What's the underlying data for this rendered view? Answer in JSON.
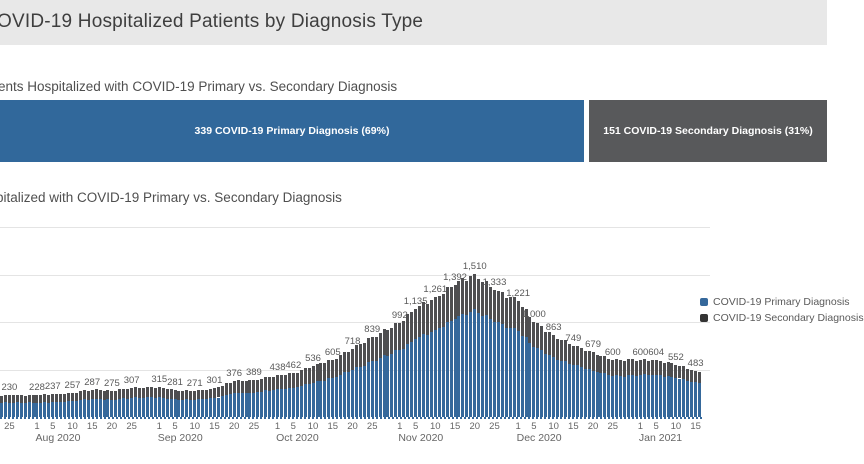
{
  "header": {
    "title": "OVID-19 Hospitalized Patients by Diagnosis Type"
  },
  "section_current": {
    "subtitle": "ents Hospitalized with COVID-19 Primary vs. Secondary Diagnosis",
    "bar": {
      "primary_label": "339 COVID-19 Primary Diagnosis (69%)",
      "secondary_label": "151 COVID-19 Secondary Diagnosis (31%)",
      "primary_value": 339,
      "primary_pct": 69,
      "secondary_value": 151,
      "secondary_pct": 31,
      "primary_color": "#31689b",
      "secondary_color": "#58595b"
    }
  },
  "section_trend": {
    "subtitle": "pitalized with COVID-19 Primary vs. Secondary Diagnosis",
    "legend": [
      {
        "label": "COVID-19 Primary Diagnosis",
        "color": "#35689b"
      },
      {
        "label": "COVID-19 Secondary Diagnosis",
        "color": "#343434"
      }
    ]
  },
  "chart_data": {
    "type": "bar",
    "subtype": "stacked-daily",
    "title": "pitalized with COVID-19 Primary vs. Secondary Diagnosis",
    "ylim": [
      0,
      2000
    ],
    "grid_step": 500,
    "grid_on": true,
    "y_tick_labels_visible": false,
    "legend_position": "right",
    "n_days": 178,
    "series": [
      {
        "name": "COVID-19 Primary Diagnosis",
        "color": "#35689b"
      },
      {
        "name": "COVID-19 Secondary Diagnosis",
        "color": "#4e4e50"
      }
    ],
    "anchors": [
      {
        "i": 0,
        "date": "",
        "total": 225,
        "primary": 148,
        "labeled": false
      },
      {
        "i": 2,
        "date": "Jul 25",
        "total": 230,
        "primary": 152,
        "labeled": true
      },
      {
        "i": 9,
        "date": "Aug 1",
        "total": 228,
        "primary": 150,
        "labeled": true
      },
      {
        "i": 13,
        "date": "Aug 5",
        "total": 237,
        "primary": 156,
        "labeled": true
      },
      {
        "i": 18,
        "date": "Aug 10",
        "total": 257,
        "primary": 170,
        "labeled": true
      },
      {
        "i": 23,
        "date": "Aug 15",
        "total": 287,
        "primary": 189,
        "labeled": true
      },
      {
        "i": 28,
        "date": "Aug 20",
        "total": 275,
        "primary": 182,
        "labeled": true
      },
      {
        "i": 33,
        "date": "Aug 25",
        "total": 307,
        "primary": 203,
        "labeled": true
      },
      {
        "i": 40,
        "date": "Sep 1",
        "total": 315,
        "primary": 208,
        "labeled": true
      },
      {
        "i": 44,
        "date": "Sep 5",
        "total": 281,
        "primary": 185,
        "labeled": true
      },
      {
        "i": 49,
        "date": "Sep 10",
        "total": 271,
        "primary": 178,
        "labeled": true
      },
      {
        "i": 54,
        "date": "Sep 15",
        "total": 301,
        "primary": 199,
        "labeled": true
      },
      {
        "i": 59,
        "date": "Sep 20",
        "total": 376,
        "primary": 248,
        "labeled": true
      },
      {
        "i": 64,
        "date": "Sep 25",
        "total": 389,
        "primary": 257,
        "labeled": true
      },
      {
        "i": 70,
        "date": "Oct 1",
        "total": 438,
        "primary": 293,
        "labeled": true
      },
      {
        "i": 74,
        "date": "Oct 5",
        "total": 462,
        "primary": 310,
        "labeled": true
      },
      {
        "i": 79,
        "date": "Oct 10",
        "total": 536,
        "primary": 359,
        "labeled": true
      },
      {
        "i": 84,
        "date": "Oct 15",
        "total": 605,
        "primary": 411,
        "labeled": true
      },
      {
        "i": 89,
        "date": "Oct 20",
        "total": 718,
        "primary": 495,
        "labeled": true
      },
      {
        "i": 94,
        "date": "Oct 25",
        "total": 839,
        "primary": 587,
        "labeled": true
      },
      {
        "i": 101,
        "date": "Nov 1",
        "total": 992,
        "primary": 704,
        "labeled": true
      },
      {
        "i": 105,
        "date": "Nov 5",
        "total": 1135,
        "primary": 817,
        "labeled": true
      },
      {
        "i": 110,
        "date": "Nov 10",
        "total": 1261,
        "primary": 920,
        "labeled": true
      },
      {
        "i": 115,
        "date": "Nov 15",
        "total": 1392,
        "primary": 1030,
        "labeled": true
      },
      {
        "i": 120,
        "date": "Nov 20",
        "total": 1510,
        "primary": 1132,
        "labeled": true
      },
      {
        "i": 125,
        "date": "Nov 25",
        "total": 1333,
        "primary": 1000,
        "labeled": true
      },
      {
        "i": 131,
        "date": "Dec 1",
        "total": 1221,
        "primary": 904,
        "labeled": true
      },
      {
        "i": 135,
        "date": "Dec 5",
        "total": 1000,
        "primary": 740,
        "labeled": true
      },
      {
        "i": 140,
        "date": "Dec 10",
        "total": 863,
        "primary": 630,
        "labeled": true
      },
      {
        "i": 145,
        "date": "Dec 15",
        "total": 749,
        "primary": 547,
        "labeled": true
      },
      {
        "i": 150,
        "date": "Dec 20",
        "total": 679,
        "primary": 489,
        "labeled": true
      },
      {
        "i": 155,
        "date": "Dec 25",
        "total": 600,
        "primary": 432,
        "labeled": true
      },
      {
        "i": 162,
        "date": "Jan 1",
        "total": 600,
        "primary": 438,
        "labeled": true
      },
      {
        "i": 166,
        "date": "Jan 5",
        "total": 604,
        "primary": 447,
        "labeled": true
      },
      {
        "i": 171,
        "date": "Jan 10",
        "total": 552,
        "primary": 414,
        "labeled": true
      },
      {
        "i": 176,
        "date": "Jan 15",
        "total": 483,
        "primary": 367,
        "labeled": true
      },
      {
        "i": 177,
        "date": "",
        "total": 475,
        "primary": 360,
        "labeled": false
      }
    ],
    "x_ticks": [
      {
        "i": 2,
        "t": "25"
      },
      {
        "i": 9,
        "t": "1"
      },
      {
        "i": 13,
        "t": "5"
      },
      {
        "i": 18,
        "t": "10"
      },
      {
        "i": 23,
        "t": "15"
      },
      {
        "i": 28,
        "t": "20"
      },
      {
        "i": 33,
        "t": "25"
      },
      {
        "i": 40,
        "t": "1"
      },
      {
        "i": 44,
        "t": "5"
      },
      {
        "i": 49,
        "t": "10"
      },
      {
        "i": 54,
        "t": "15"
      },
      {
        "i": 59,
        "t": "20"
      },
      {
        "i": 64,
        "t": "25"
      },
      {
        "i": 70,
        "t": "1"
      },
      {
        "i": 74,
        "t": "5"
      },
      {
        "i": 79,
        "t": "10"
      },
      {
        "i": 84,
        "t": "15"
      },
      {
        "i": 89,
        "t": "20"
      },
      {
        "i": 94,
        "t": "25"
      },
      {
        "i": 101,
        "t": "1"
      },
      {
        "i": 105,
        "t": "5"
      },
      {
        "i": 110,
        "t": "10"
      },
      {
        "i": 115,
        "t": "15"
      },
      {
        "i": 120,
        "t": "20"
      },
      {
        "i": 125,
        "t": "25"
      },
      {
        "i": 131,
        "t": "1"
      },
      {
        "i": 135,
        "t": "5"
      },
      {
        "i": 140,
        "t": "10"
      },
      {
        "i": 145,
        "t": "15"
      },
      {
        "i": 150,
        "t": "20"
      },
      {
        "i": 155,
        "t": "25"
      },
      {
        "i": 162,
        "t": "1"
      },
      {
        "i": 166,
        "t": "5"
      },
      {
        "i": 171,
        "t": "10"
      },
      {
        "i": 176,
        "t": "15"
      }
    ],
    "x_months": [
      {
        "i": 9,
        "t": "Aug 2020"
      },
      {
        "i": 40,
        "t": "Sep 2020"
      },
      {
        "i": 70,
        "t": "Oct 2020"
      },
      {
        "i": 101,
        "t": "Nov 2020"
      },
      {
        "i": 131,
        "t": "Dec 2020"
      },
      {
        "i": 162,
        "t": "Jan 2021"
      }
    ]
  }
}
